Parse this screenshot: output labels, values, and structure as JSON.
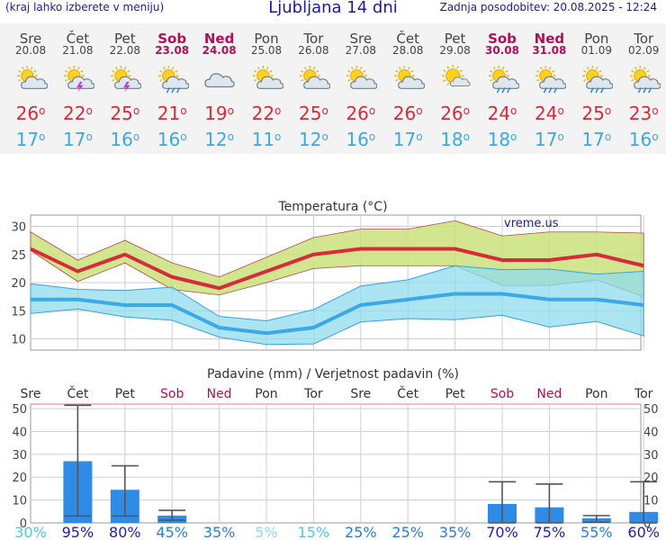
{
  "header": {
    "hint": "(kraj lahko izberete v meniju)",
    "title": "Ljubljana 14 dni",
    "updated": "Zadnja posodobitev: 20.08.2025 - 12:24"
  },
  "days": [
    {
      "name": "Sre",
      "date": "20.08",
      "weekend": false,
      "icon": "partly-cloudy-sun-icon",
      "tmax": "26",
      "tmin": "17"
    },
    {
      "name": "Čet",
      "date": "21.08",
      "weekend": false,
      "icon": "sun-cloud-thunder-icon",
      "tmax": "22",
      "tmin": "17"
    },
    {
      "name": "Pet",
      "date": "22.08",
      "weekend": false,
      "icon": "sun-cloud-thunder-icon",
      "tmax": "25",
      "tmin": "16"
    },
    {
      "name": "Sob",
      "date": "23.08",
      "weekend": true,
      "icon": "sun-cloud-rain-icon",
      "tmax": "21",
      "tmin": "16"
    },
    {
      "name": "Ned",
      "date": "24.08",
      "weekend": true,
      "icon": "cloudy-icon",
      "tmax": "19",
      "tmin": "12"
    },
    {
      "name": "Pon",
      "date": "25.08",
      "weekend": false,
      "icon": "partly-cloudy-sun-icon",
      "tmax": "22",
      "tmin": "11"
    },
    {
      "name": "Tor",
      "date": "26.08",
      "weekend": false,
      "icon": "partly-cloudy-sun-icon",
      "tmax": "25",
      "tmin": "12"
    },
    {
      "name": "Sre",
      "date": "27.08",
      "weekend": false,
      "icon": "partly-cloudy-sun-icon",
      "tmax": "26",
      "tmin": "16"
    },
    {
      "name": "Čet",
      "date": "28.08",
      "weekend": false,
      "icon": "partly-cloudy-sun-icon",
      "tmax": "26",
      "tmin": "17"
    },
    {
      "name": "Pet",
      "date": "29.08",
      "weekend": false,
      "icon": "mostly-sunny-icon",
      "tmax": "26",
      "tmin": "18"
    },
    {
      "name": "Sob",
      "date": "30.08",
      "weekend": true,
      "icon": "sun-cloud-rain-icon",
      "tmax": "24",
      "tmin": "18"
    },
    {
      "name": "Ned",
      "date": "31.08",
      "weekend": true,
      "icon": "sun-cloud-rain-icon",
      "tmax": "24",
      "tmin": "17"
    },
    {
      "name": "Pon",
      "date": "01.09",
      "weekend": false,
      "icon": "sun-cloud-rain-icon",
      "tmax": "25",
      "tmin": "17"
    },
    {
      "name": "Tor",
      "date": "02.09",
      "weekend": false,
      "icon": "sun-cloud-rain-icon",
      "tmax": "23",
      "tmin": "16"
    }
  ],
  "colors": {
    "max": "#d62b3a",
    "min": "#3aa9e6",
    "max_band": "#c9e27a",
    "min_band": "#8fdcee",
    "overlap": "#7fc96f",
    "bar": "#2f8ce6",
    "weekend": "#b0105a",
    "title": "#1a1aa6"
  },
  "chart_data": [
    {
      "type": "line",
      "title": "Temperatura (°C)",
      "watermark": "vreme.us",
      "ylim": [
        8,
        32
      ],
      "yticks": [
        10,
        15,
        20,
        25,
        30
      ],
      "grid": true,
      "categories": [
        "Sre",
        "Čet",
        "Pet",
        "Sob",
        "Ned",
        "Pon",
        "Tor",
        "Sre",
        "Čet",
        "Pet",
        "Sob",
        "Ned",
        "Pon",
        "Tor"
      ],
      "x": [
        0,
        1,
        2,
        3,
        4,
        5,
        6,
        7,
        8,
        9,
        10,
        11,
        12,
        13
      ],
      "series": [
        {
          "role": "max",
          "values": [
            26,
            22,
            25,
            21,
            19,
            22,
            25,
            26,
            26,
            26,
            24,
            24,
            25,
            23
          ]
        },
        {
          "role": "min",
          "values": [
            17,
            17,
            16,
            16,
            12,
            11,
            12,
            16,
            17,
            18,
            18,
            17,
            17,
            16
          ]
        },
        {
          "role": "max-range-upper",
          "values": [
            29,
            24,
            27.5,
            23.5,
            21,
            24.5,
            28,
            29.5,
            29.5,
            31,
            28.3,
            29,
            29,
            28.8
          ]
        },
        {
          "role": "max-range-lower",
          "values": [
            25.7,
            20.2,
            23.5,
            18.8,
            17.8,
            20,
            22.5,
            23,
            23,
            23,
            19.5,
            19.5,
            20.5,
            17.5
          ]
        },
        {
          "role": "min-range-upper",
          "values": [
            19.8,
            18.8,
            18.6,
            19.2,
            14,
            13.2,
            15.2,
            19.4,
            20.5,
            23,
            22.3,
            22.4,
            21.5,
            22
          ]
        },
        {
          "role": "min-range-lower",
          "values": [
            14.5,
            15.3,
            13.9,
            13.3,
            10.3,
            9,
            9.1,
            13,
            13.6,
            13.4,
            14.2,
            12.1,
            13.1,
            10.5
          ]
        }
      ]
    },
    {
      "type": "bar",
      "title": "Padavine (mm) / Verjetnost padavin (%)",
      "ylim": [
        0,
        52
      ],
      "yticks": [
        0,
        10,
        20,
        30,
        40,
        50
      ],
      "grid": true,
      "categories": [
        "Sre",
        "Čet",
        "Pet",
        "Sob",
        "Ned",
        "Pon",
        "Tor",
        "Sre",
        "Čet",
        "Pet",
        "Sob",
        "Ned",
        "Pon",
        "Tor"
      ],
      "weekend": [
        false,
        false,
        false,
        true,
        true,
        false,
        false,
        false,
        false,
        false,
        true,
        true,
        false,
        false
      ],
      "values": [
        0,
        27,
        14.5,
        3.2,
        0,
        0,
        0,
        0,
        0,
        0,
        8.3,
        6.8,
        2,
        4.8
      ],
      "range_low": [
        null,
        3,
        3,
        1.2,
        null,
        null,
        null,
        null,
        null,
        null,
        0,
        0,
        0.3,
        0
      ],
      "range_high": [
        null,
        51.5,
        25,
        5.5,
        null,
        null,
        null,
        null,
        null,
        null,
        18,
        17,
        3.2,
        18
      ],
      "probabilities": [
        "30%",
        "95%",
        "80%",
        "45%",
        "35%",
        "5%",
        "15%",
        "25%",
        "25%",
        "35%",
        "70%",
        "75%",
        "55%",
        "60%"
      ],
      "probability_colors": [
        "#5bc3ea",
        "#1f1fa8",
        "#1f1fa8",
        "#2a7fd4",
        "#2a7fd4",
        "#8adcf4",
        "#5bc3ea",
        "#2a7fd4",
        "#2a7fd4",
        "#2a7fd4",
        "#1f1fa8",
        "#1f1fa8",
        "#2a7fd4",
        "#1f1fa8"
      ]
    }
  ]
}
